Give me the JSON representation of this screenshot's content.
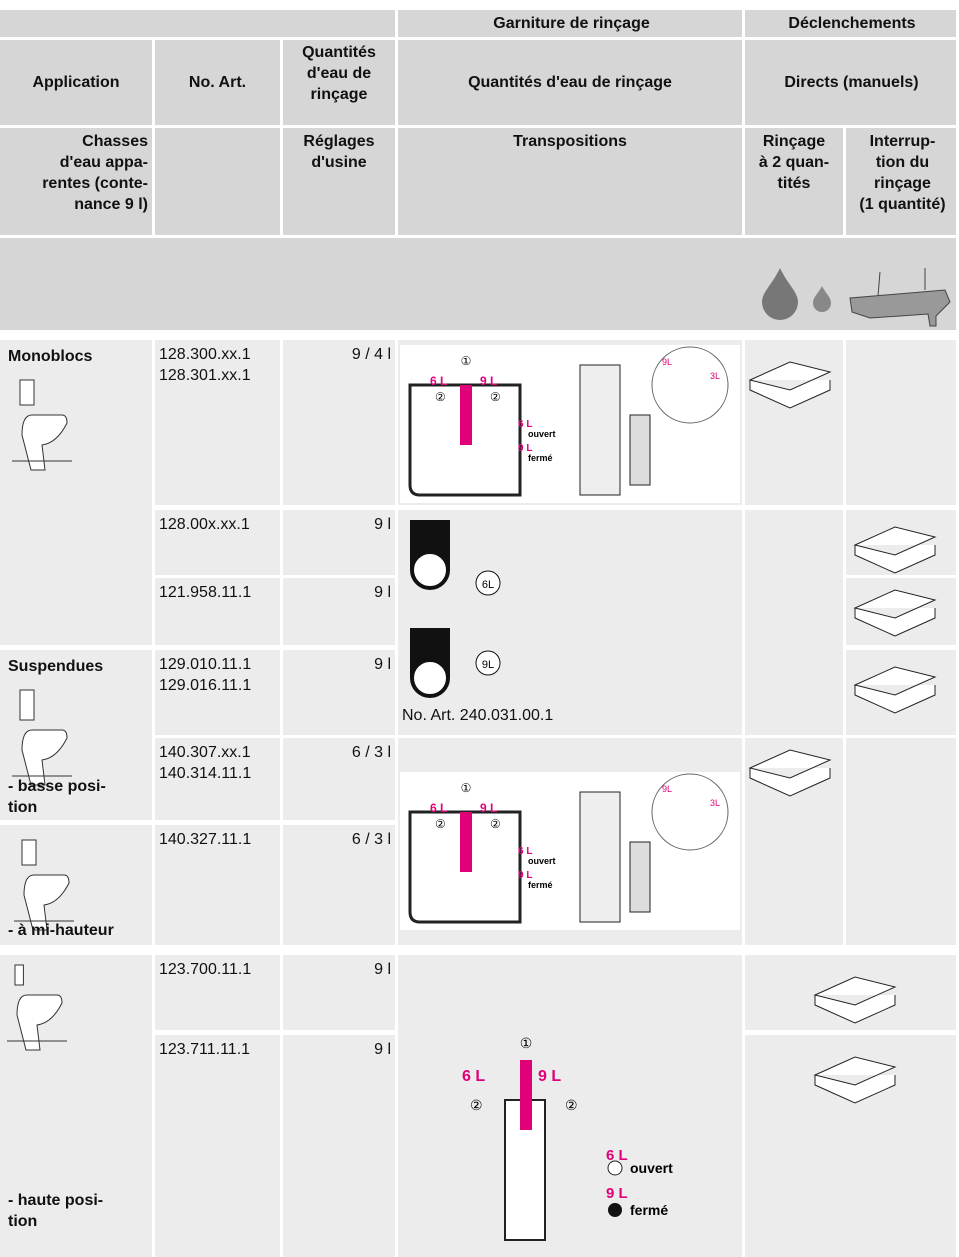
{
  "header": {
    "row1": [
      "Garniture de rinçage",
      "Déclenchements"
    ],
    "row2": [
      "Application",
      "No. Art.",
      "Quantités\nd'eau de\nrinçage",
      "Quantités d'eau de rinçage",
      "Directs (manuels)"
    ],
    "row3": [
      "Chasses\nd'eau appa-\nrentes (conte-\nnance 9 l)",
      "Réglages\nd'usine",
      "Transpositions",
      "Rinçage\nà 2 quan-\ntités",
      "Interrup-\ntion du\nrinçage\n(1 quantité)"
    ]
  },
  "applications": [
    "Monoblocs",
    "Suspendues",
    "- basse posi-\ntion",
    "- à mi-hauteur",
    "- haute posi-\ntion"
  ],
  "rows": [
    {
      "articles": "128.300.xx.1\n128.301.xx.1",
      "quantity": "9 / 4 l"
    },
    {
      "articles": "128.00x.xx.1",
      "quantity": "9 l"
    },
    {
      "articles": "121.958.11.1",
      "quantity": "9 l"
    },
    {
      "articles": "129.010.11.1\n129.016.11.1",
      "quantity": "9 l"
    },
    {
      "articles": "140.307.xx.1\n140.314.11.1",
      "quantity": "6 / 3 l"
    },
    {
      "articles": "140.327.11.1",
      "quantity": "6 / 3 l"
    },
    {
      "articles": "123.700.11.1",
      "quantity": "9 l"
    },
    {
      "articles": "123.711.11.1",
      "quantity": "9 l"
    }
  ],
  "diagram": {
    "step1": "①",
    "step2": "②",
    "left": "6 L",
    "right": "9 L",
    "open_q": "6 L",
    "open": "ouvert",
    "closed_q": "9 L",
    "closed": "fermé",
    "from": "9L",
    "to": "3L",
    "valve_a": "6L",
    "valve_b": "9L",
    "part": "No. Art. 240.031.00.1"
  }
}
